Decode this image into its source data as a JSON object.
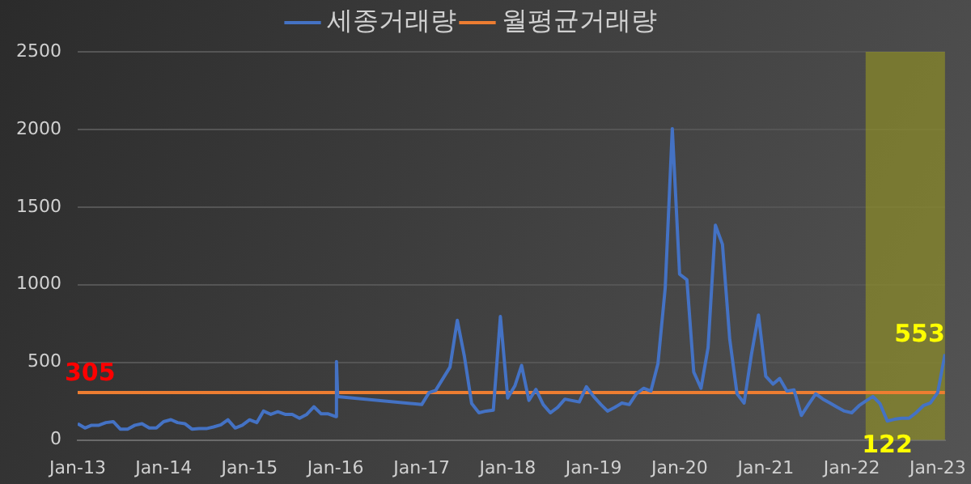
{
  "chart_data": {
    "type": "line",
    "x": [
      "2013-01",
      "2013-02",
      "2013-03",
      "2013-04",
      "2013-05",
      "2013-06",
      "2013-07",
      "2013-08",
      "2013-09",
      "2013-10",
      "2013-11",
      "2013-12",
      "2014-01",
      "2014-02",
      "2014-03",
      "2014-04",
      "2014-05",
      "2014-06",
      "2014-07",
      "2014-08",
      "2014-09",
      "2014-10",
      "2014-11",
      "2014-12",
      "2015-01",
      "2015-02",
      "2015-03",
      "2015-04",
      "2015-05",
      "2015-06",
      "2015-07",
      "2015-08",
      "2015-09",
      "2015-10",
      "2015-11",
      "2015-12",
      "2016-01",
      "2016-01-05",
      "2016-01-10",
      "2017-01",
      "2017-02",
      "2017-03",
      "2017-05",
      "2017-06",
      "2017-07",
      "2017-08",
      "2017-09",
      "2017-10",
      "2017-11",
      "2017-12",
      "2018-01",
      "2018-02",
      "2018-03",
      "2018-04",
      "2018-05",
      "2018-06",
      "2018-07",
      "2018-08",
      "2018-09",
      "2018-10",
      "2018-11",
      "2018-12",
      "2019-01",
      "2019-02",
      "2019-03",
      "2019-04",
      "2019-05",
      "2019-06",
      "2019-07",
      "2019-08",
      "2019-09",
      "2019-10",
      "2019-11",
      "2019-12",
      "2020-01",
      "2020-02",
      "2020-03",
      "2020-04",
      "2020-05",
      "2020-06",
      "2020-07",
      "2020-08",
      "2020-09",
      "2020-10",
      "2020-11",
      "2020-12",
      "2021-01",
      "2021-02",
      "2021-03",
      "2021-04",
      "2021-05",
      "2021-06",
      "2021-07",
      "2021-08",
      "2021-09",
      "2021-10",
      "2021-11",
      "2021-12",
      "2022-01",
      "2022-02",
      "2022-03",
      "2022-04",
      "2022-05",
      "2022-06",
      "2022-07",
      "2022-08",
      "2022-09",
      "2022-10",
      "2022-11",
      "2022-12",
      "2023-01",
      "2023-02"
    ],
    "series": [
      {
        "name": "세종거래량",
        "color": "#4472c4",
        "values": [
          105,
          77,
          95,
          95,
          112,
          118,
          70,
          70,
          95,
          105,
          77,
          77,
          118,
          131,
          112,
          105,
          70,
          73,
          73,
          84,
          98,
          130,
          77,
          95,
          130,
          112,
          186,
          165,
          182,
          165,
          165,
          140,
          165,
          214,
          168,
          168,
          151,
          505,
          280,
          228,
          305,
          319,
          469,
          771,
          540,
          235,
          175,
          186,
          192,
          795,
          270,
          350,
          480,
          255,
          326,
          228,
          175,
          210,
          263,
          254,
          245,
          343,
          280,
          228,
          186,
          210,
          238,
          228,
          297,
          333,
          315,
          490,
          980,
          2005,
          1068,
          1032,
          438,
          333,
          595,
          1383,
          1260,
          648,
          297,
          238,
          550,
          805,
          410,
          360,
          396,
          315,
          322,
          158,
          228,
          297,
          263,
          238,
          210,
          186,
          175,
          221,
          250,
          280,
          234,
          122,
          133,
          140,
          140,
          175,
          221,
          238,
          305,
          553
        ]
      },
      {
        "name": "월평균거래량",
        "color": "#ed7d31",
        "x": [
          "2013-01",
          "2023-02"
        ],
        "values": [
          305,
          305
        ]
      }
    ],
    "xlim": [
      "2013-01",
      "2023-02"
    ],
    "xticks": [
      {
        "value": "2013-01",
        "label": "Jan-13"
      },
      {
        "value": "2014-01",
        "label": "Jan-14"
      },
      {
        "value": "2015-01",
        "label": "Jan-15"
      },
      {
        "value": "2016-01",
        "label": "Jan-16"
      },
      {
        "value": "2017-01",
        "label": "Jan-17"
      },
      {
        "value": "2018-01",
        "label": "Jan-18"
      },
      {
        "value": "2019-01",
        "label": "Jan-19"
      },
      {
        "value": "2020-01",
        "label": "Jan-20"
      },
      {
        "value": "2021-01",
        "label": "Jan-21"
      },
      {
        "value": "2022-01",
        "label": "Jan-22"
      },
      {
        "value": "2023-01",
        "label": "Jan-23"
      }
    ],
    "ylim": [
      0,
      2500
    ],
    "yticks": [
      0,
      500,
      1000,
      1500,
      2000,
      2500
    ],
    "grid": "y",
    "legend": "top",
    "marker": "none",
    "line_style": "solid",
    "bands": [
      {
        "axis": "x",
        "from": "2022-03",
        "to": "2023-02",
        "color": "#9e9e1e"
      }
    ],
    "annotations": [
      {
        "text": "305",
        "x": "2013-01",
        "y": 305
      },
      {
        "text": "553",
        "x": "2023-02",
        "y": 553
      },
      {
        "text": "122",
        "x": "2022-06",
        "y": 122
      }
    ]
  }
}
